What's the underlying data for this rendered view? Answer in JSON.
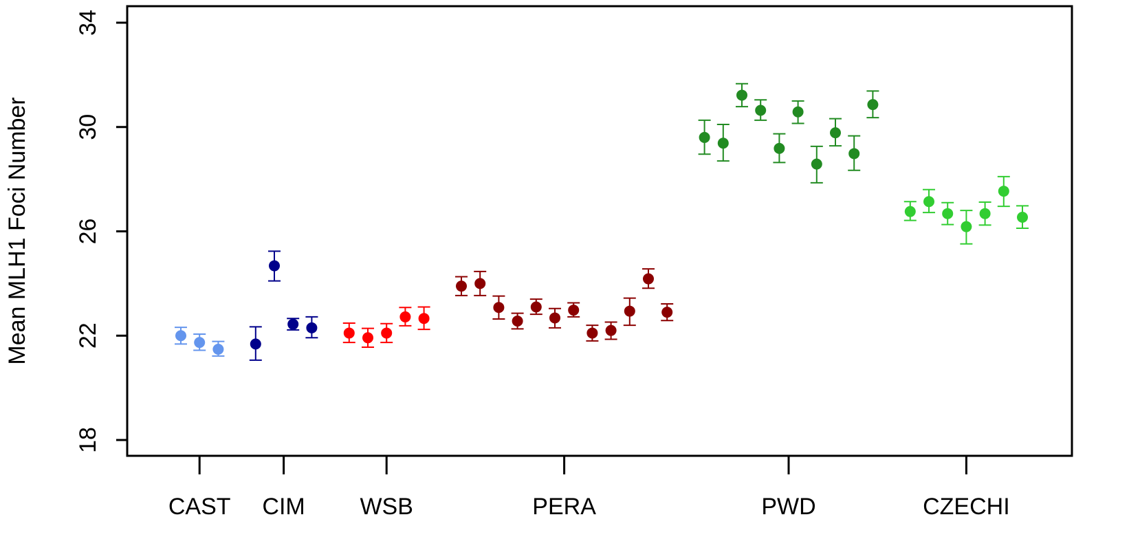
{
  "chart_data": {
    "type": "scatter",
    "title": "",
    "xlabel": "",
    "ylabel": "Mean MLH1 Foci Number",
    "ylim": [
      17.6,
      35
    ],
    "y_ticks": [
      18,
      22,
      26,
      30,
      34
    ],
    "grid": false,
    "legend": "none",
    "error_bars": true,
    "groups": [
      {
        "name": "CAST",
        "color": "#6495ED",
        "points": [
          {
            "mean": 22.0,
            "lower": 21.68,
            "upper": 22.32
          },
          {
            "mean": 21.74,
            "lower": 21.44,
            "upper": 22.06
          },
          {
            "mean": 21.48,
            "lower": 21.22,
            "upper": 21.78
          }
        ]
      },
      {
        "name": "CIM",
        "color": "#00008B",
        "points": [
          {
            "mean": 21.68,
            "lower": 21.06,
            "upper": 22.34
          },
          {
            "mean": 24.68,
            "lower": 24.1,
            "upper": 25.24
          },
          {
            "mean": 22.44,
            "lower": 22.22,
            "upper": 22.66
          },
          {
            "mean": 22.3,
            "lower": 21.92,
            "upper": 22.72
          }
        ]
      },
      {
        "name": "WSB",
        "color": "#FF0000",
        "points": [
          {
            "mean": 22.1,
            "lower": 21.74,
            "upper": 22.48
          },
          {
            "mean": 21.92,
            "lower": 21.56,
            "upper": 22.28
          },
          {
            "mean": 22.1,
            "lower": 21.74,
            "upper": 22.46
          },
          {
            "mean": 22.72,
            "lower": 22.38,
            "upper": 23.08
          },
          {
            "mean": 22.66,
            "lower": 22.24,
            "upper": 23.1
          }
        ]
      },
      {
        "name": "PERA",
        "color": "#8B0000",
        "points": [
          {
            "mean": 23.9,
            "lower": 23.54,
            "upper": 24.26
          },
          {
            "mean": 24.0,
            "lower": 23.54,
            "upper": 24.46
          },
          {
            "mean": 23.08,
            "lower": 22.64,
            "upper": 23.52
          },
          {
            "mean": 22.56,
            "lower": 22.26,
            "upper": 22.86
          },
          {
            "mean": 23.1,
            "lower": 22.82,
            "upper": 23.4
          },
          {
            "mean": 22.68,
            "lower": 22.3,
            "upper": 23.04
          },
          {
            "mean": 22.98,
            "lower": 22.72,
            "upper": 23.26
          },
          {
            "mean": 22.1,
            "lower": 21.8,
            "upper": 22.4
          },
          {
            "mean": 22.2,
            "lower": 21.86,
            "upper": 22.52
          },
          {
            "mean": 22.94,
            "lower": 22.4,
            "upper": 23.44
          },
          {
            "mean": 24.18,
            "lower": 23.82,
            "upper": 24.56
          },
          {
            "mean": 22.9,
            "lower": 22.58,
            "upper": 23.22
          }
        ]
      },
      {
        "name": "PWD",
        "color": "#228B22",
        "points": [
          {
            "mean": 29.6,
            "lower": 28.96,
            "upper": 30.26
          },
          {
            "mean": 29.38,
            "lower": 28.7,
            "upper": 30.1
          },
          {
            "mean": 31.22,
            "lower": 30.78,
            "upper": 31.66
          },
          {
            "mean": 30.64,
            "lower": 30.26,
            "upper": 31.04
          },
          {
            "mean": 29.18,
            "lower": 28.64,
            "upper": 29.74
          },
          {
            "mean": 30.58,
            "lower": 30.14,
            "upper": 31.0
          },
          {
            "mean": 28.58,
            "lower": 27.86,
            "upper": 29.26
          },
          {
            "mean": 29.78,
            "lower": 29.28,
            "upper": 30.32
          },
          {
            "mean": 28.98,
            "lower": 28.34,
            "upper": 29.66
          },
          {
            "mean": 30.86,
            "lower": 30.36,
            "upper": 31.38
          }
        ]
      },
      {
        "name": "CZECHI",
        "color": "#32CD32",
        "points": [
          {
            "mean": 26.76,
            "lower": 26.42,
            "upper": 27.14
          },
          {
            "mean": 27.14,
            "lower": 26.72,
            "upper": 27.6
          },
          {
            "mean": 26.68,
            "lower": 26.26,
            "upper": 27.1
          },
          {
            "mean": 26.18,
            "lower": 25.52,
            "upper": 26.8
          },
          {
            "mean": 26.68,
            "lower": 26.24,
            "upper": 27.12
          },
          {
            "mean": 27.54,
            "lower": 26.96,
            "upper": 28.1
          },
          {
            "mean": 26.54,
            "lower": 26.12,
            "upper": 26.98
          }
        ]
      }
    ]
  }
}
